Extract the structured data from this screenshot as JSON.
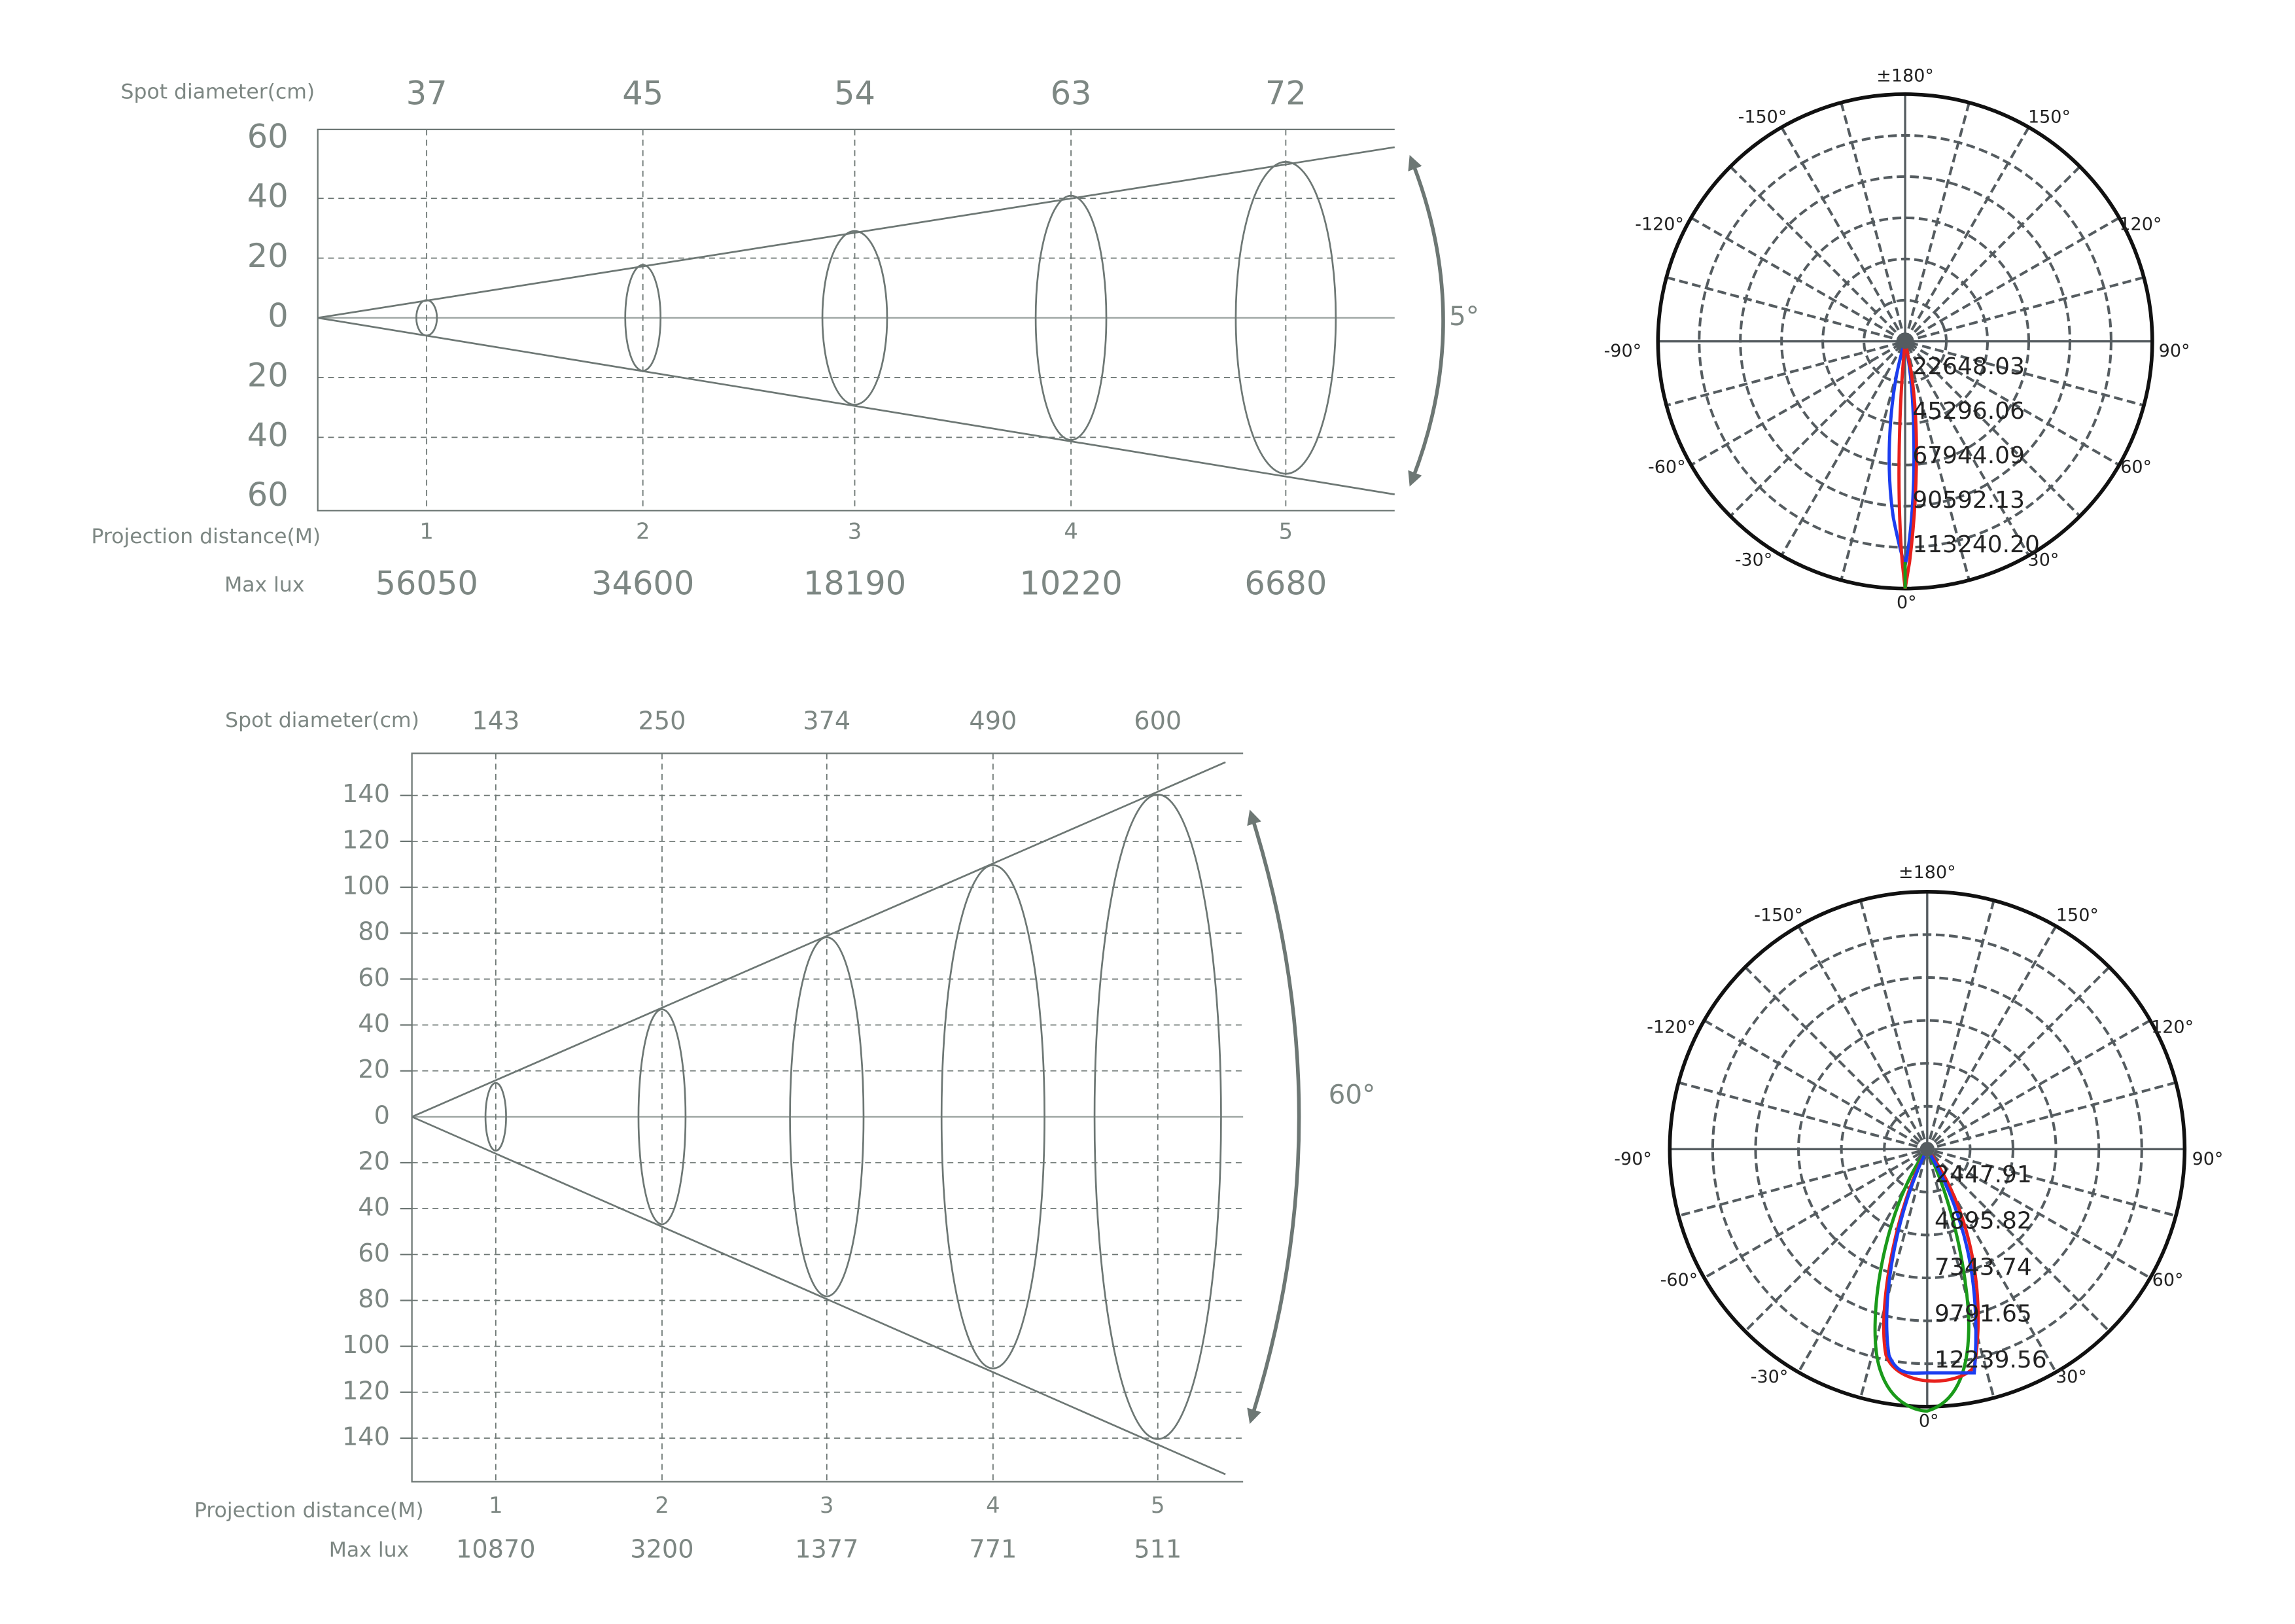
{
  "beam_diagrams": [
    {
      "spot_label": "Spot diameter(cm)",
      "spot_diameters": [
        37,
        45,
        54,
        63,
        72
      ],
      "y_tick_labels": [
        60,
        40,
        20,
        0,
        20,
        40,
        60
      ],
      "distance_label": "Projection distance(M)",
      "distances": [
        1,
        2,
        3,
        4,
        5
      ],
      "lux_label": "Max lux",
      "max_lux": [
        56050,
        34600,
        18190,
        10220,
        6680
      ],
      "beam_angle": "5°"
    },
    {
      "spot_label": "Spot diameter(cm)",
      "spot_diameters": [
        143,
        250,
        374,
        490,
        600
      ],
      "y_tick_labels": [
        140,
        120,
        100,
        80,
        60,
        40,
        20,
        0,
        20,
        40,
        60,
        80,
        100,
        120,
        140
      ],
      "distance_label": "Projection distance(M)",
      "distances": [
        1,
        2,
        3,
        4,
        5
      ],
      "lux_label": "Max lux",
      "max_lux": [
        10870,
        3200,
        1377,
        771,
        511
      ],
      "beam_angle": "60°"
    }
  ],
  "polar_diagrams": [
    {
      "angle_labels": [
        "±180°",
        "-150°",
        "150°",
        "-120°",
        "120°",
        "-90°",
        "90°",
        "-60°",
        "60°",
        "-30°",
        "30°",
        "0°"
      ],
      "ring_labels": [
        "22648.03",
        "45296.06",
        "67944.09",
        "90592.13",
        "113240.20"
      ]
    },
    {
      "angle_labels": [
        "±180°",
        "-150°",
        "150°",
        "-120°",
        "120°",
        "-90°",
        "90°",
        "-60°",
        "60°",
        "-30°",
        "30°",
        "0°"
      ],
      "ring_labels": [
        "2447.91",
        "4895.82",
        "7343.74",
        "9791.65",
        "12239.56"
      ]
    }
  ]
}
